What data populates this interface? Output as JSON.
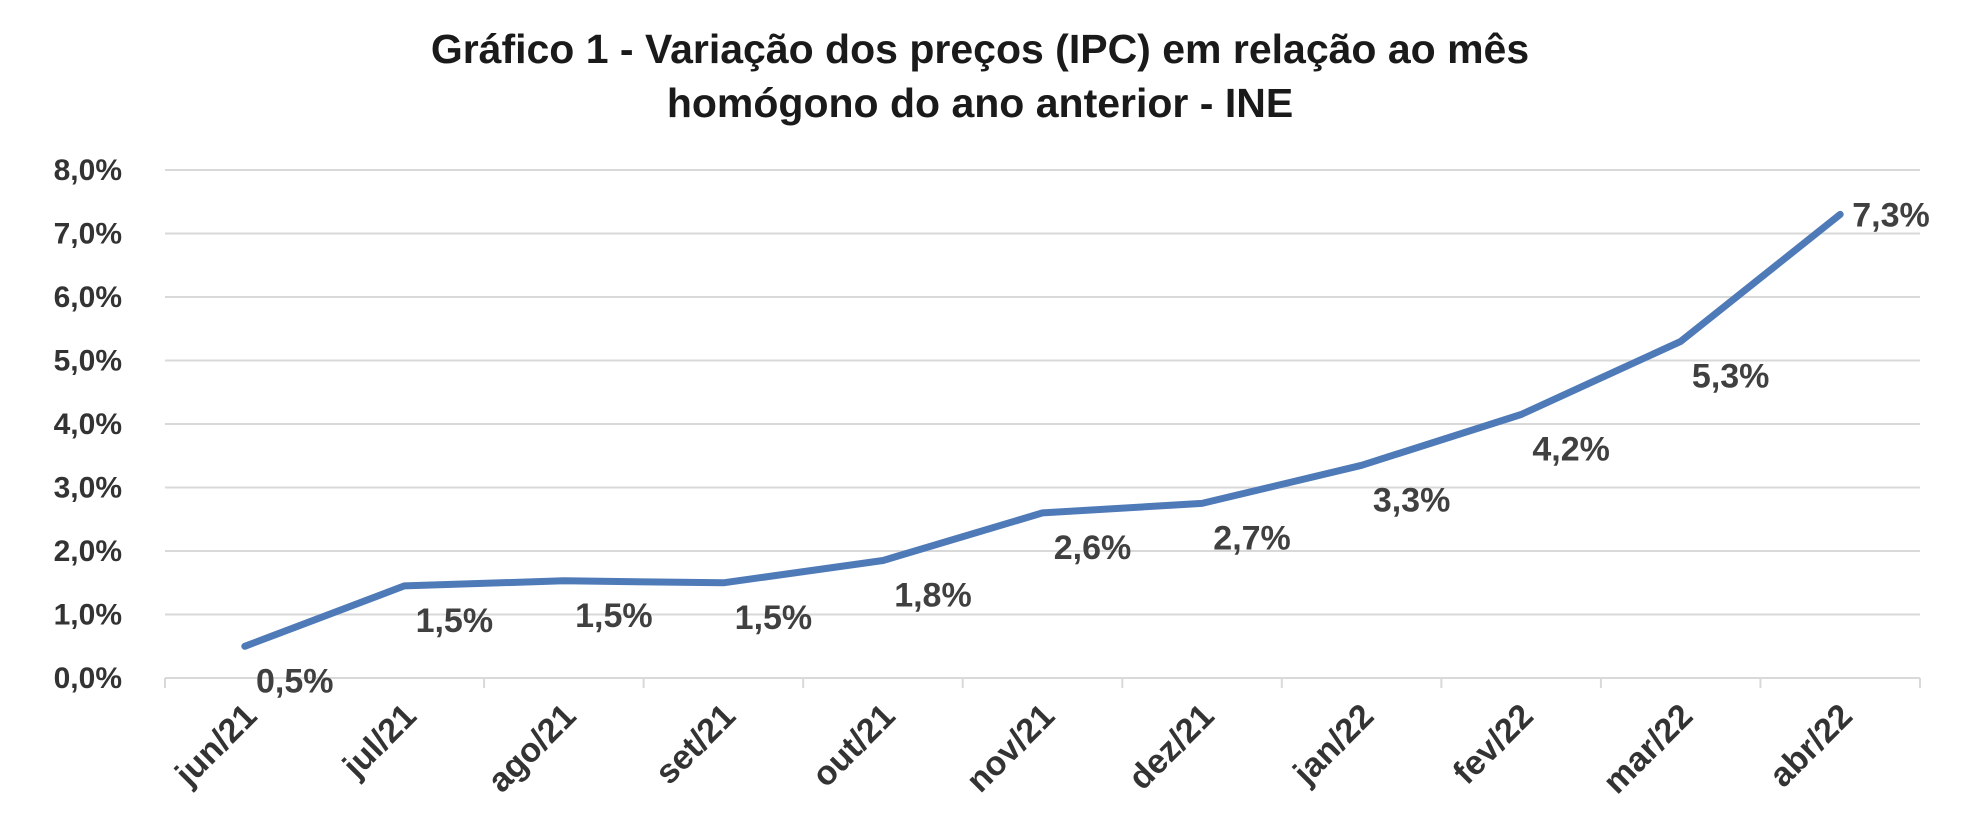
{
  "chart_data": {
    "type": "line",
    "title_lines": [
      "Gráfico 1 - Variação dos preços (IPC) em relação ao mês",
      "homógono do ano anterior - INE"
    ],
    "categories": [
      "jun/21",
      "jul/21",
      "ago/21",
      "set/21",
      "out/21",
      "nov/21",
      "dez/21",
      "jan/22",
      "fev/22",
      "mar/22",
      "abr/22"
    ],
    "values": [
      0.5,
      1.45,
      1.53,
      1.5,
      1.85,
      2.6,
      2.75,
      3.35,
      4.15,
      5.3,
      7.3
    ],
    "data_labels": [
      "0,5%",
      "1,5%",
      "1,5%",
      "1,5%",
      "1,8%",
      "2,6%",
      "2,7%",
      "3,3%",
      "4,2%",
      "5,3%",
      "7,3%"
    ],
    "y_ticks": [
      "0,0%",
      "1,0%",
      "2,0%",
      "3,0%",
      "4,0%",
      "5,0%",
      "6,0%",
      "7,0%",
      "8,0%"
    ],
    "ylim": [
      0,
      8
    ],
    "xlabel": "",
    "ylabel": "",
    "grid": true,
    "legend": "none",
    "line_color": "#4f7ab8",
    "grid_color": "#d9d9d9"
  }
}
